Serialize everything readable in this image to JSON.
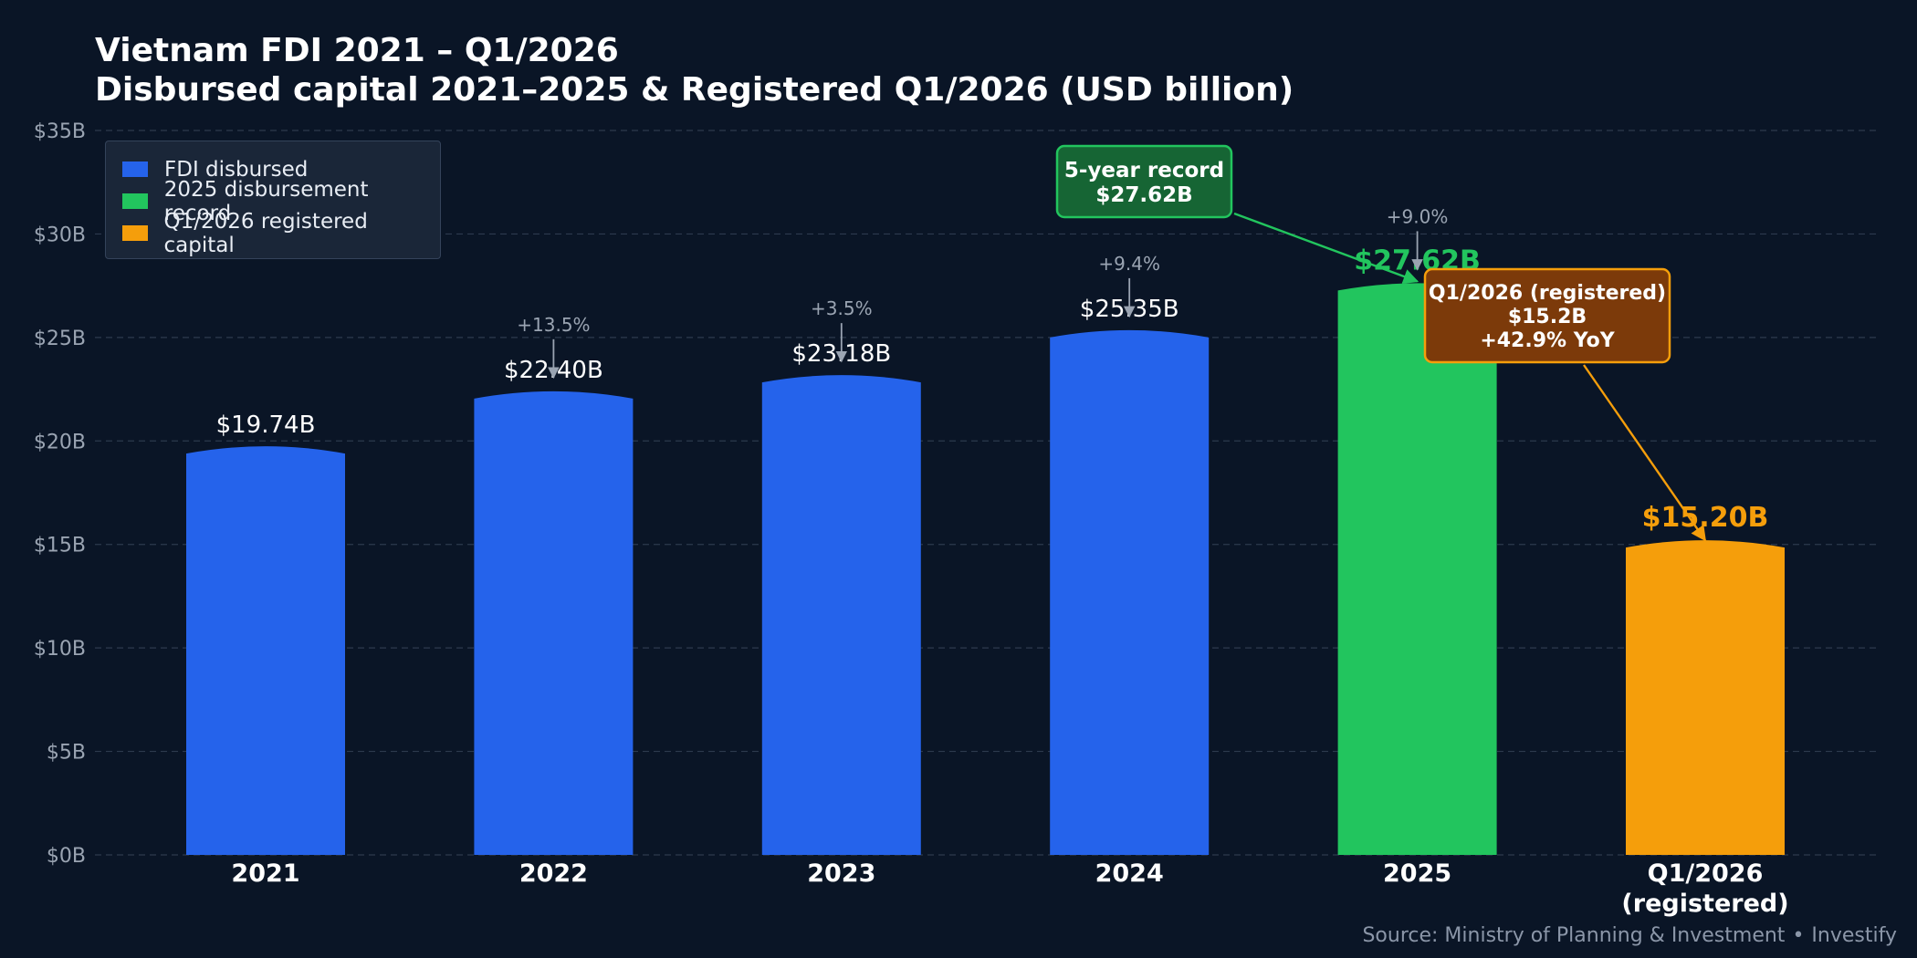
{
  "colors": {
    "background": "#0a1526",
    "disbursed": "#2563eb",
    "record": "#22c55e",
    "registered": "#f59e0b",
    "grid": "#2d3a4e",
    "tick_text": "#9aa4b2",
    "growth_text": "#9aa4b2"
  },
  "source": {
    "text": "Source: Ministry of Planning & Investment",
    "brand": "Investify",
    "separator": "•"
  },
  "chart_data": {
    "type": "bar",
    "title": "Vietnam FDI 2021 – Q1/2026",
    "subtitle": "Disbursed capital 2021–2025 & Registered Q1/2026 (USD billion)",
    "xlabel": "",
    "ylabel": "",
    "ylim": [
      0,
      35
    ],
    "yticks": [
      0,
      5,
      10,
      15,
      20,
      25,
      30,
      35
    ],
    "ytick_labels": [
      "$0B",
      "$5B",
      "$10B",
      "$15B",
      "$20B",
      "$25B",
      "$30B",
      "$35B"
    ],
    "grid": true,
    "categories": [
      "2021",
      "2022",
      "2023",
      "2024",
      "2025",
      "Q1/2026\n(registered)"
    ],
    "values": [
      19.74,
      22.4,
      23.18,
      25.35,
      27.62,
      15.2
    ],
    "value_labels": [
      "$19.74B",
      "$22.40B",
      "$23.18B",
      "$25.35B",
      "$27.62B",
      "$15.20B"
    ],
    "bar_series": [
      "FDI disbursed",
      "FDI disbursed",
      "FDI disbursed",
      "FDI disbursed",
      "2025 disbursement record",
      "Q1/2026 registered capital"
    ],
    "growth_labels": [
      null,
      "+13.5%",
      "+3.5%",
      "+9.4%",
      "+9.0%",
      null
    ],
    "legend": {
      "position": "top-left",
      "entries": [
        {
          "name": "FDI disbursed",
          "color": "#2563eb"
        },
        {
          "name": "2025 disbursement record",
          "color": "#22c55e"
        },
        {
          "name": "Q1/2026 registered capital",
          "color": "#f59e0b"
        }
      ]
    },
    "annotations": [
      {
        "lines": [
          "5-year record",
          "$27.62B"
        ],
        "target_index": 4,
        "target_value": 27.62,
        "fill": "#166534",
        "border": "#22c55e"
      },
      {
        "lines": [
          "Q1/2026 (registered)",
          "$15.2B",
          "+42.9% YoY"
        ],
        "target_index": 5,
        "target_value": 15.2,
        "fill": "#7c3a0a",
        "border": "#f59e0b"
      }
    ]
  }
}
